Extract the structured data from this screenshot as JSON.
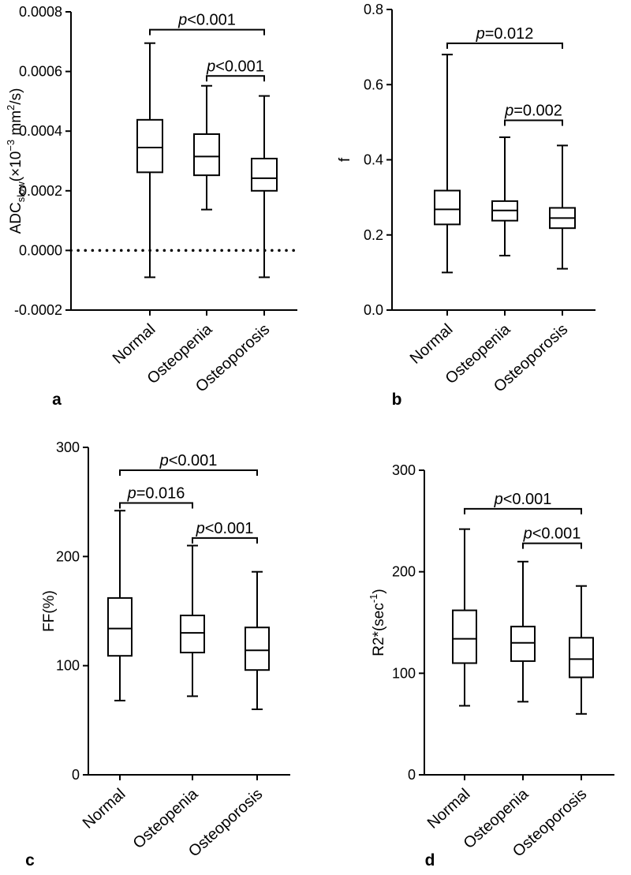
{
  "chart_data": [
    {
      "panel": "a",
      "type": "box",
      "ylabel": "ADC",
      "ylabel_sub": "slow",
      "ylabel_open": "(×10",
      "ylabel_exp": "−3",
      "ylabel_unit": " mm",
      "ylabel_unit_exp": "2",
      "ylabel_close": "/s)",
      "ylim": [
        -0.0002,
        0.0008
      ],
      "yticks": [
        -0.0002,
        0,
        0.0002,
        0.0004,
        0.0006,
        0.0008
      ],
      "ytick_labels": [
        "-0.0002",
        "0.0000",
        "0.0002",
        "0.0004",
        "0.0006",
        "0.0008"
      ],
      "reference_line": 0,
      "categories": [
        "Normal",
        "Osteopenia",
        "Osteoporosis"
      ],
      "boxes": [
        {
          "min": -9e-05,
          "q1": 0.000262,
          "median": 0.000345,
          "q3": 0.000438,
          "max": 0.000695
        },
        {
          "min": 0.000137,
          "q1": 0.000252,
          "median": 0.000315,
          "q3": 0.00039,
          "max": 0.000552
        },
        {
          "min": -9e-05,
          "q1": 0.0002,
          "median": 0.000242,
          "q3": 0.000308,
          "max": 0.000518
        }
      ],
      "comparisons": [
        {
          "from": 0,
          "to": 2,
          "label_p": "p",
          "label_rest": "<0.001",
          "y": 0.00074
        },
        {
          "from": 1,
          "to": 2,
          "label_p": "p",
          "label_rest": "<0.001",
          "y": 0.000585
        }
      ]
    },
    {
      "panel": "b",
      "type": "box",
      "ylabel": "f",
      "ylim": [
        0,
        0.8
      ],
      "yticks": [
        0,
        0.2,
        0.4,
        0.6,
        0.8
      ],
      "ytick_labels": [
        "0.0",
        "0.2",
        "0.4",
        "0.6",
        "0.8"
      ],
      "categories": [
        "Normal",
        "Osteopenia",
        "Osteoporosis"
      ],
      "boxes": [
        {
          "min": 0.1,
          "q1": 0.228,
          "median": 0.268,
          "q3": 0.318,
          "max": 0.68
        },
        {
          "min": 0.145,
          "q1": 0.238,
          "median": 0.265,
          "q3": 0.29,
          "max": 0.46
        },
        {
          "min": 0.11,
          "q1": 0.218,
          "median": 0.245,
          "q3": 0.272,
          "max": 0.438
        }
      ],
      "comparisons": [
        {
          "from": 0,
          "to": 2,
          "label_p": "p",
          "label_rest": "=0.012",
          "y": 0.71
        },
        {
          "from": 1,
          "to": 2,
          "label_p": "p",
          "label_rest": "=0.002",
          "y": 0.505
        }
      ]
    },
    {
      "panel": "c",
      "type": "box",
      "ylabel": "FF(%)",
      "ylim": [
        0,
        300
      ],
      "yticks": [
        0,
        100,
        200,
        300
      ],
      "ytick_labels": [
        "0",
        "100",
        "200",
        "300"
      ],
      "categories": [
        "Normal",
        "Osteopenia",
        "Osteoporosis"
      ],
      "boxes": [
        {
          "min": 68,
          "q1": 109,
          "median": 134,
          "q3": 162,
          "max": 242
        },
        {
          "min": 72,
          "q1": 112,
          "median": 130,
          "q3": 146,
          "max": 210
        },
        {
          "min": 60,
          "q1": 96,
          "median": 114,
          "q3": 135,
          "max": 186
        }
      ],
      "comparisons": [
        {
          "from": 0,
          "to": 2,
          "label_p": "p",
          "label_rest": "<0.001",
          "y": 279
        },
        {
          "from": 0,
          "to": 1,
          "label_p": "p",
          "label_rest": "=0.016",
          "y": 249
        },
        {
          "from": 1,
          "to": 2,
          "label_p": "p",
          "label_rest": "<0.001",
          "y": 217
        }
      ]
    },
    {
      "panel": "d",
      "type": "box",
      "ylabel": "R2*(sec",
      "ylabel_exp": "-1",
      "ylabel_close": ")",
      "ylim": [
        0,
        300
      ],
      "yticks": [
        0,
        100,
        200,
        300
      ],
      "ytick_labels": [
        "0",
        "100",
        "200",
        "300"
      ],
      "categories": [
        "Normal",
        "Osteopenia",
        "Osteoporosis"
      ],
      "boxes": [
        {
          "min": 68,
          "q1": 110,
          "median": 134,
          "q3": 162,
          "max": 242
        },
        {
          "min": 72,
          "q1": 112,
          "median": 130,
          "q3": 146,
          "max": 210
        },
        {
          "min": 60,
          "q1": 96,
          "median": 114,
          "q3": 135,
          "max": 186
        }
      ],
      "comparisons": [
        {
          "from": 0,
          "to": 2,
          "label_p": "p",
          "label_rest": "<0.001",
          "y": 262
        },
        {
          "from": 1,
          "to": 2,
          "label_p": "p",
          "label_rest": "<0.001",
          "y": 228
        }
      ]
    }
  ]
}
